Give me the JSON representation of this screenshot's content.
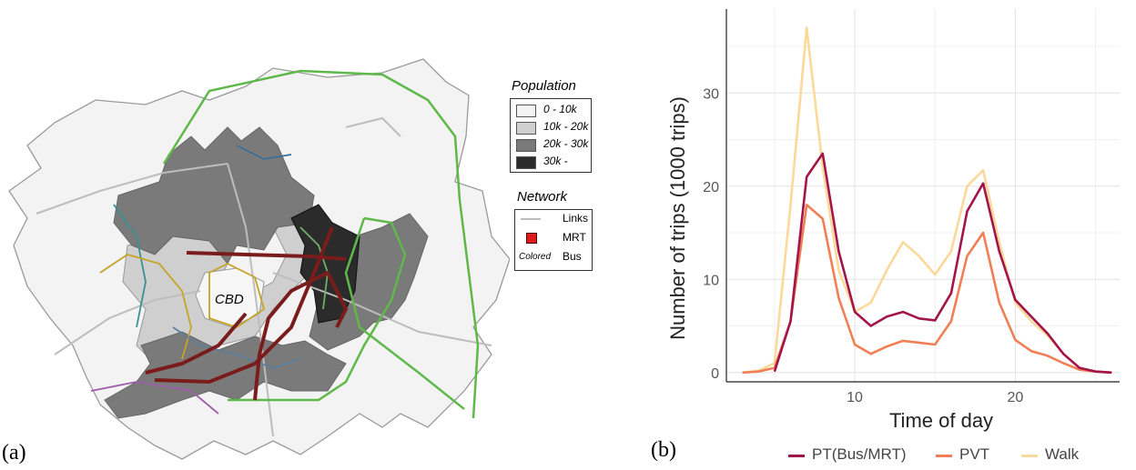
{
  "panels": {
    "a_label": "(a)",
    "b_label": "(b)"
  },
  "map": {
    "cbd_label": "CBD",
    "legend": {
      "population_title": "Population",
      "population_classes": [
        {
          "label": "0 - 10k",
          "color": "#f4f4f4"
        },
        {
          "label": "10k - 20k",
          "color": "#cfcfcf"
        },
        {
          "label": "20k - 30k",
          "color": "#7a7a7a"
        },
        {
          "label": "30k -",
          "color": "#2b2b2b"
        }
      ],
      "network_title": "Network",
      "network_items": [
        {
          "symbol": "grey-line",
          "label": "Links"
        },
        {
          "symbol": "red-square",
          "label": "MRT"
        },
        {
          "symbol_text": "Colored",
          "label": "Bus"
        }
      ]
    }
  },
  "chart_data": {
    "type": "line",
    "title": "",
    "xlabel": "Time of day",
    "ylabel": "Number of trips (1000 trips)",
    "xlim": [
      2,
      26.5
    ],
    "ylim": [
      -1,
      39
    ],
    "xticks": [
      10,
      20
    ],
    "yticks": [
      0,
      10,
      20,
      30
    ],
    "grid": true,
    "legend_position": "bottom",
    "series": [
      {
        "name": "PT(Bus/MRT)",
        "color": "#a3154a",
        "x": [
          5,
          6,
          7,
          8,
          9,
          10,
          11,
          12,
          13,
          14,
          15,
          16,
          17,
          18,
          19,
          20,
          21,
          22,
          23,
          24,
          25,
          26
        ],
        "y": [
          0.1,
          5.5,
          21,
          23.5,
          13,
          6.5,
          5,
          6,
          6.5,
          5.8,
          5.6,
          8.5,
          17.3,
          20.3,
          13,
          7.8,
          6,
          4.2,
          2,
          0.5,
          0.1,
          0
        ]
      },
      {
        "name": "PVT",
        "color": "#f07f55",
        "x": [
          3,
          4,
          5,
          6,
          7,
          8,
          9,
          10,
          11,
          12,
          13,
          14,
          15,
          16,
          17,
          18,
          19,
          20,
          21,
          22,
          23,
          24,
          25,
          26
        ],
        "y": [
          0,
          0.1,
          0.5,
          5.5,
          18,
          16.5,
          8,
          3,
          2,
          2.8,
          3.4,
          3.2,
          3,
          5.5,
          12.5,
          15,
          7.5,
          3.5,
          2.3,
          1.8,
          1,
          0.3,
          0.1,
          0
        ]
      },
      {
        "name": "Walk",
        "color": "#fbd99a",
        "x": [
          3,
          4,
          5,
          6,
          7,
          8,
          9,
          10,
          11,
          12,
          13,
          14,
          15,
          16,
          17,
          18,
          19,
          20,
          21,
          22,
          23,
          24,
          25,
          26
        ],
        "y": [
          0,
          0.2,
          1,
          18,
          37,
          22,
          11,
          6.5,
          7.5,
          11,
          14,
          12.5,
          10.5,
          13,
          20,
          21.7,
          14,
          7.5,
          5.5,
          4,
          2,
          0.5,
          0.1,
          0
        ]
      }
    ]
  }
}
